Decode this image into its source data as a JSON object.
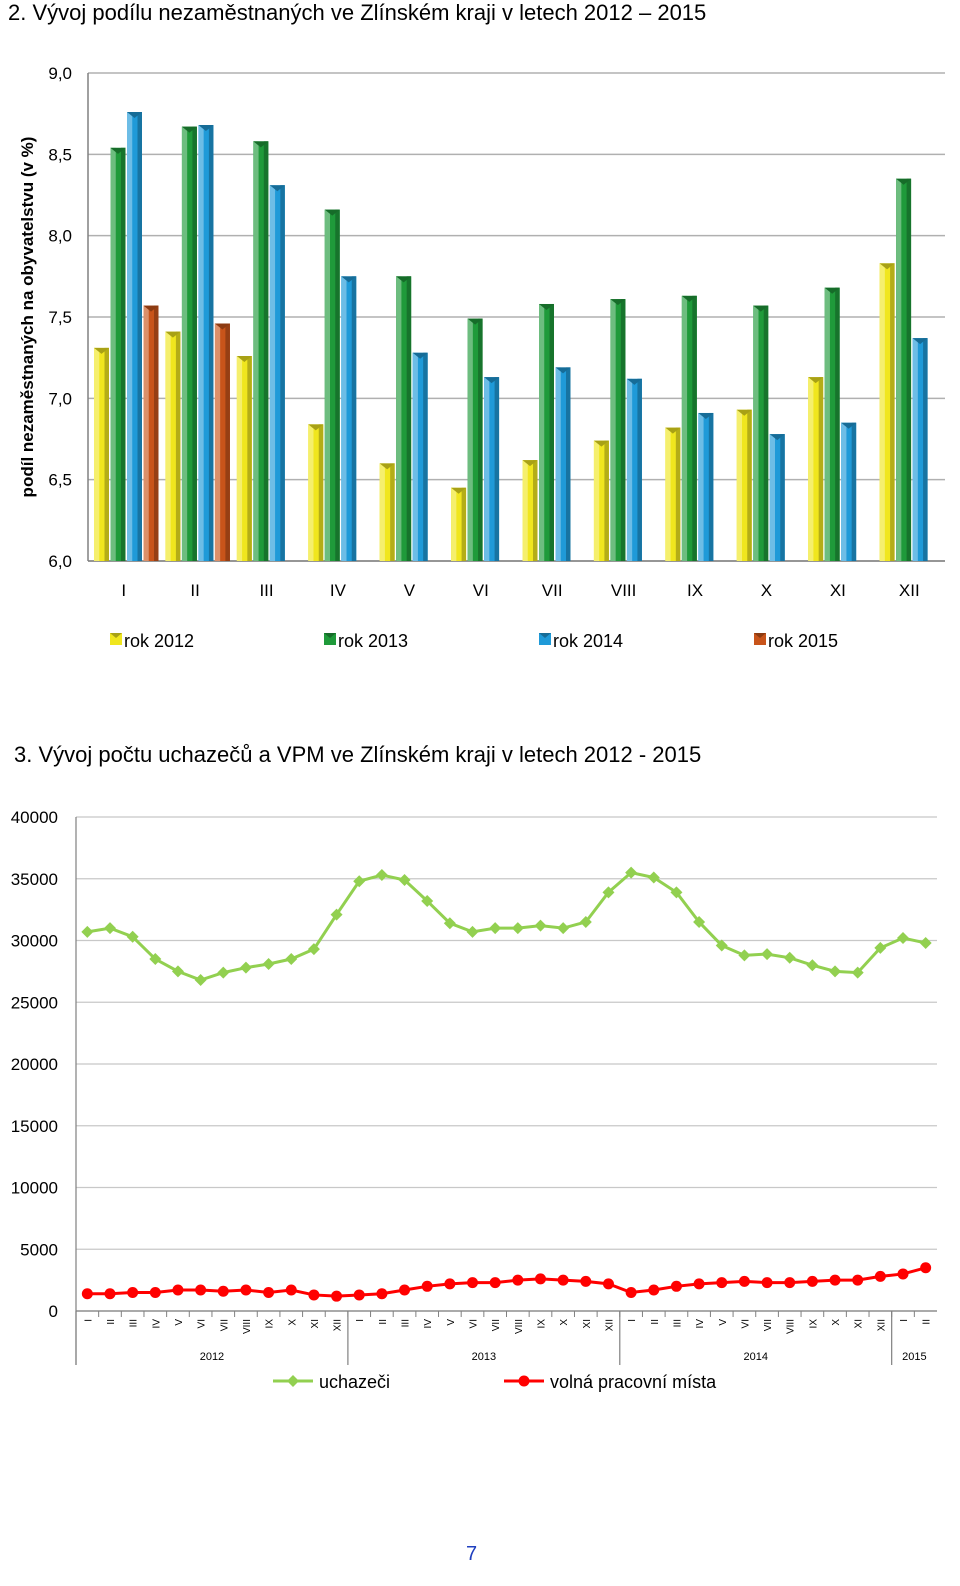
{
  "headings": {
    "chart1": "2.  Vývoj podílu nezaměstnaných ve Zlínském kraji v letech 2012 – 2015",
    "chart2": "3.  Vývoj počtu uchazečů a VPM ve Zlínském kraji v letech 2012 - 2015"
  },
  "page_number": "7",
  "chart_data": [
    {
      "type": "bar",
      "title": "Vývoj podílu nezaměstnaných ve Zlínském kraji v letech 2012 – 2015",
      "ylabel": "podíl nezaměstnaných na obyvatelstvu (v %)",
      "ylim": [
        6.0,
        9.0
      ],
      "yticks": [
        "6,0",
        "6,5",
        "7,0",
        "7,5",
        "8,0",
        "8,5",
        "9,0"
      ],
      "grid": true,
      "legend_position": "bottom",
      "categories": [
        "I",
        "II",
        "III",
        "IV",
        "V",
        "VI",
        "VII",
        "VIII",
        "IX",
        "X",
        "XI",
        "XII"
      ],
      "series": [
        {
          "name": "rok 2012",
          "color": "#f0e61e",
          "values": [
            7.31,
            7.41,
            7.26,
            6.84,
            6.6,
            6.45,
            6.62,
            6.74,
            6.82,
            6.93,
            7.13,
            7.83
          ]
        },
        {
          "name": "rok 2013",
          "color": "#1f9a3a",
          "values": [
            8.54,
            8.67,
            8.58,
            8.16,
            7.75,
            7.49,
            7.58,
            7.61,
            7.63,
            7.57,
            7.68,
            8.35
          ]
        },
        {
          "name": "rok 2014",
          "color": "#1f9ad8",
          "values": [
            8.76,
            8.68,
            8.31,
            7.75,
            7.28,
            7.13,
            7.19,
            7.12,
            6.91,
            6.78,
            6.85,
            7.37
          ]
        },
        {
          "name": "rok 2015",
          "color": "#c8541a",
          "values": [
            7.57,
            7.46,
            null,
            null,
            null,
            null,
            null,
            null,
            null,
            null,
            null,
            null
          ]
        }
      ]
    },
    {
      "type": "line",
      "title": "Vývoj počtu uchazečů a VPM ve Zlínském kraji v letech 2012 - 2015",
      "ylim": [
        0,
        40000
      ],
      "yticks": [
        "0",
        "5000",
        "10000",
        "15000",
        "20000",
        "25000",
        "30000",
        "35000",
        "40000"
      ],
      "grid": true,
      "legend_position": "bottom",
      "x": [
        "I",
        "II",
        "III",
        "IV",
        "V",
        "VI",
        "VII",
        "VIII",
        "IX",
        "X",
        "XI",
        "XII",
        "I",
        "II",
        "III",
        "IV",
        "V",
        "VI",
        "VII",
        "VIII",
        "IX",
        "X",
        "XI",
        "XII",
        "I",
        "II",
        "III",
        "IV",
        "V",
        "VI",
        "VII",
        "VIII",
        "IX",
        "X",
        "XI",
        "XII",
        "I",
        "II"
      ],
      "year_groups": [
        {
          "label": "2012",
          "months": 12
        },
        {
          "label": "2013",
          "months": 12
        },
        {
          "label": "2014",
          "months": 12
        },
        {
          "label": "2015",
          "months": 2
        }
      ],
      "series": [
        {
          "name": "uchazeči",
          "color": "#92d050",
          "marker": "diamond",
          "values": [
            30700,
            31000,
            30300,
            28500,
            27500,
            26800,
            27400,
            27800,
            28100,
            28500,
            29300,
            32100,
            34800,
            35300,
            34900,
            33200,
            31400,
            30700,
            31000,
            31000,
            31200,
            31000,
            31500,
            33900,
            35500,
            35100,
            33900,
            31500,
            29600,
            28800,
            28900,
            28600,
            28000,
            27500,
            27400,
            29400,
            30200,
            29800
          ]
        },
        {
          "name": "volná pracovní místa",
          "color": "#ff0000",
          "marker": "circle",
          "values": [
            1400,
            1400,
            1500,
            1500,
            1700,
            1700,
            1600,
            1700,
            1500,
            1700,
            1300,
            1200,
            1300,
            1400,
            1700,
            2000,
            2200,
            2300,
            2300,
            2500,
            2600,
            2500,
            2400,
            2200,
            1500,
            1700,
            2000,
            2200,
            2300,
            2400,
            2300,
            2300,
            2400,
            2500,
            2500,
            2800,
            3000,
            3500
          ]
        }
      ]
    }
  ]
}
